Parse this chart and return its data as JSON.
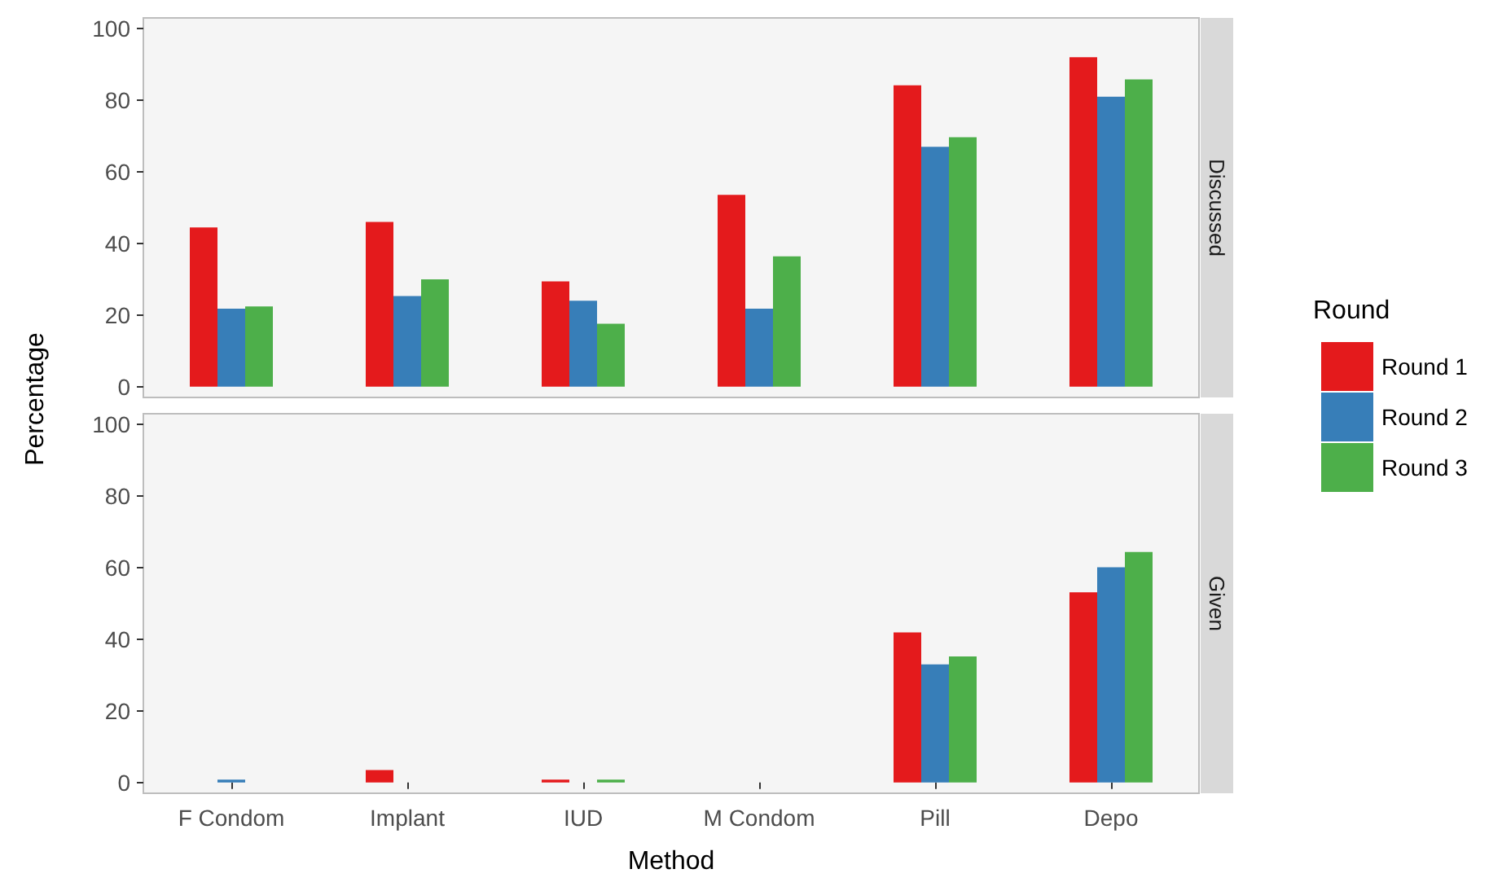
{
  "chart_data": [
    {
      "type": "bar",
      "title": "Discussed",
      "ylabel": "Percentage",
      "legend_title": "Round",
      "legend": "right",
      "tick_labels": "y",
      "categories": [
        null,
        null,
        null,
        null,
        null,
        null
      ],
      "series": [
        {
          "name": "Round 1",
          "color": "#e41a1c",
          "values": [
            44.5,
            46,
            29.4,
            53.6,
            84.2,
            92
          ]
        },
        {
          "name": "Round 2",
          "color": "#377eb8",
          "values": [
            21.8,
            25.3,
            24,
            21.8,
            67,
            81
          ]
        },
        {
          "name": "Round 3",
          "color": "#4daf4a",
          "values": [
            22.4,
            30,
            17.6,
            36.4,
            69.7,
            85.8
          ]
        }
      ],
      "ylim": [
        -3,
        103
      ],
      "yticks": [
        0,
        20,
        40,
        60,
        80,
        100
      ]
    },
    {
      "type": "bar",
      "title": "Given",
      "xlabel": "Method",
      "categories": [
        "F Condom",
        "Implant",
        "IUD",
        "M Condom",
        "Pill",
        "Depo"
      ],
      "series": [
        {
          "color": "#e41a1c",
          "values": [
            0,
            3.5,
            0.8,
            0,
            41.9,
            53.1
          ]
        },
        {
          "color": "#377eb8",
          "values": [
            0.8,
            0,
            0,
            0,
            33,
            60.1
          ]
        },
        {
          "color": "#4daf4a",
          "values": [
            0,
            0,
            0.8,
            0,
            35.2,
            64.4
          ]
        }
      ],
      "ylim": [
        -3,
        103
      ],
      "yticks": [
        0,
        20,
        40,
        60,
        80,
        100
      ]
    }
  ]
}
